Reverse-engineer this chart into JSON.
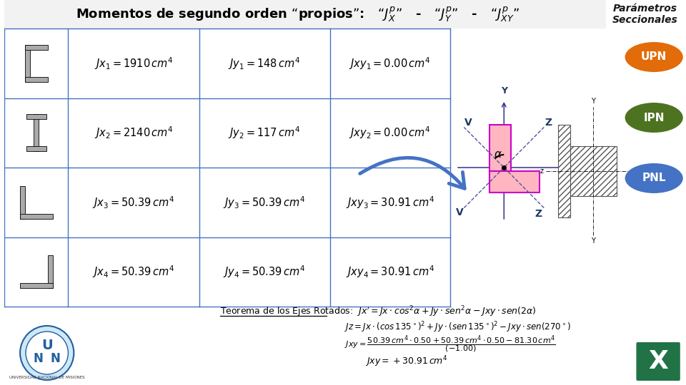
{
  "bg_color": "#ffffff",
  "title_text": "Momentos de segundo orden “propios”:   “$J_X^p$”   -   “$J_Y^p$”   -   “$J_{XY}^p$”",
  "title_color": "#000000",
  "grid_color": "#4472c4",
  "params_title": "Parámetros\nSeccionales",
  "upn_color": "#e26b0a",
  "ipn_color": "#4e7320",
  "pnl_color": "#4472c4",
  "upn_text": "UPN",
  "ipn_text": "IPN",
  "pnl_text": "PNL",
  "rows": [
    {
      "jx": "$Jx_1 = 1910\\,cm^4$",
      "jy": "$Jy_1 = 148\\,cm^4$",
      "jxy": "$Jxy_1 = 0.00\\,cm^4$"
    },
    {
      "jx": "$Jx_2 = 2140\\,cm^4$",
      "jy": "$Jy_2 = 117\\,cm^4$",
      "jxy": "$Jxy_2 = 0.00\\,cm^4$"
    },
    {
      "jx": "$Jx_3 = 50.39\\,cm^4$",
      "jy": "$Jy_3 = 50.39\\,cm^4$",
      "jxy": "$Jxy_3 = 30.91\\,cm^4$"
    },
    {
      "jx": "$Jx_4 = 50.39\\,cm^4$",
      "jy": "$Jy_4 = 50.39\\,cm^4$",
      "jxy": "$Jxy_4 = 30.91\\,cm^4$"
    }
  ],
  "theorem_label": "Teorema de los Ejes Rotados:",
  "theorem_eq": "$Jx' = Jx \\cdot cos^2\\alpha + Jy \\cdot sen^2\\alpha - Jxy \\cdot sen(2\\alpha)$",
  "eq2": "$Jz = Jx \\cdot (cos\\,135^\\circ)^2 + Jy \\cdot (sen\\,135^\\circ)^2 - Jxy \\cdot sen(270^\\circ)$",
  "eq4": "$Jxy = +30.91\\,cm^4$",
  "arrow_color": "#4472c4"
}
